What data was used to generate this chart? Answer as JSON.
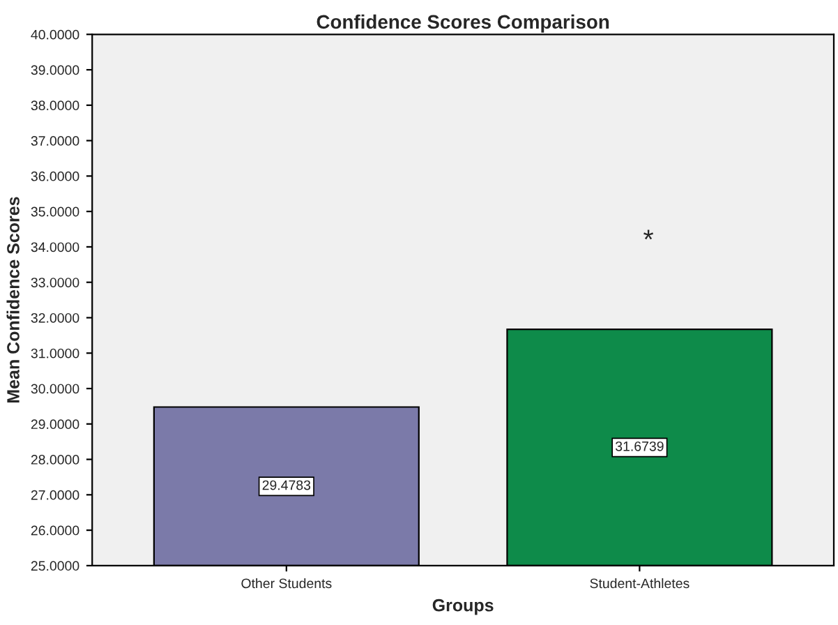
{
  "chart_data": {
    "type": "bar",
    "title": "Confidence Scores Comparison",
    "xlabel": "Groups",
    "ylabel": "Mean Confidence Scores",
    "categories": [
      "Other Students",
      "Student-Athletes"
    ],
    "values": [
      29.4783,
      31.6739
    ],
    "colors": [
      "#7b7aa9",
      "#0e8b4a"
    ],
    "data_labels": true,
    "ylim": [
      25,
      40
    ],
    "yticks": [
      {
        "value": 25,
        "label": "25.0000"
      },
      {
        "value": 26,
        "label": "26.0000"
      },
      {
        "value": 27,
        "label": "27.0000"
      },
      {
        "value": 28,
        "label": "28.0000"
      },
      {
        "value": 29,
        "label": "29.0000"
      },
      {
        "value": 30,
        "label": "30.0000"
      },
      {
        "value": 31,
        "label": "31.0000"
      },
      {
        "value": 32,
        "label": "32.0000"
      },
      {
        "value": 33,
        "label": "33.0000"
      },
      {
        "value": 34,
        "label": "34.0000"
      },
      {
        "value": 35,
        "label": "35.0000"
      },
      {
        "value": 36,
        "label": "36.0000"
      },
      {
        "value": 37,
        "label": "37.0000"
      },
      {
        "value": 38,
        "label": "38.0000"
      },
      {
        "value": 39,
        "label": "39.0000"
      },
      {
        "value": 40,
        "label": "40.0000"
      }
    ],
    "annotations": [
      "*"
    ],
    "grid": false
  }
}
